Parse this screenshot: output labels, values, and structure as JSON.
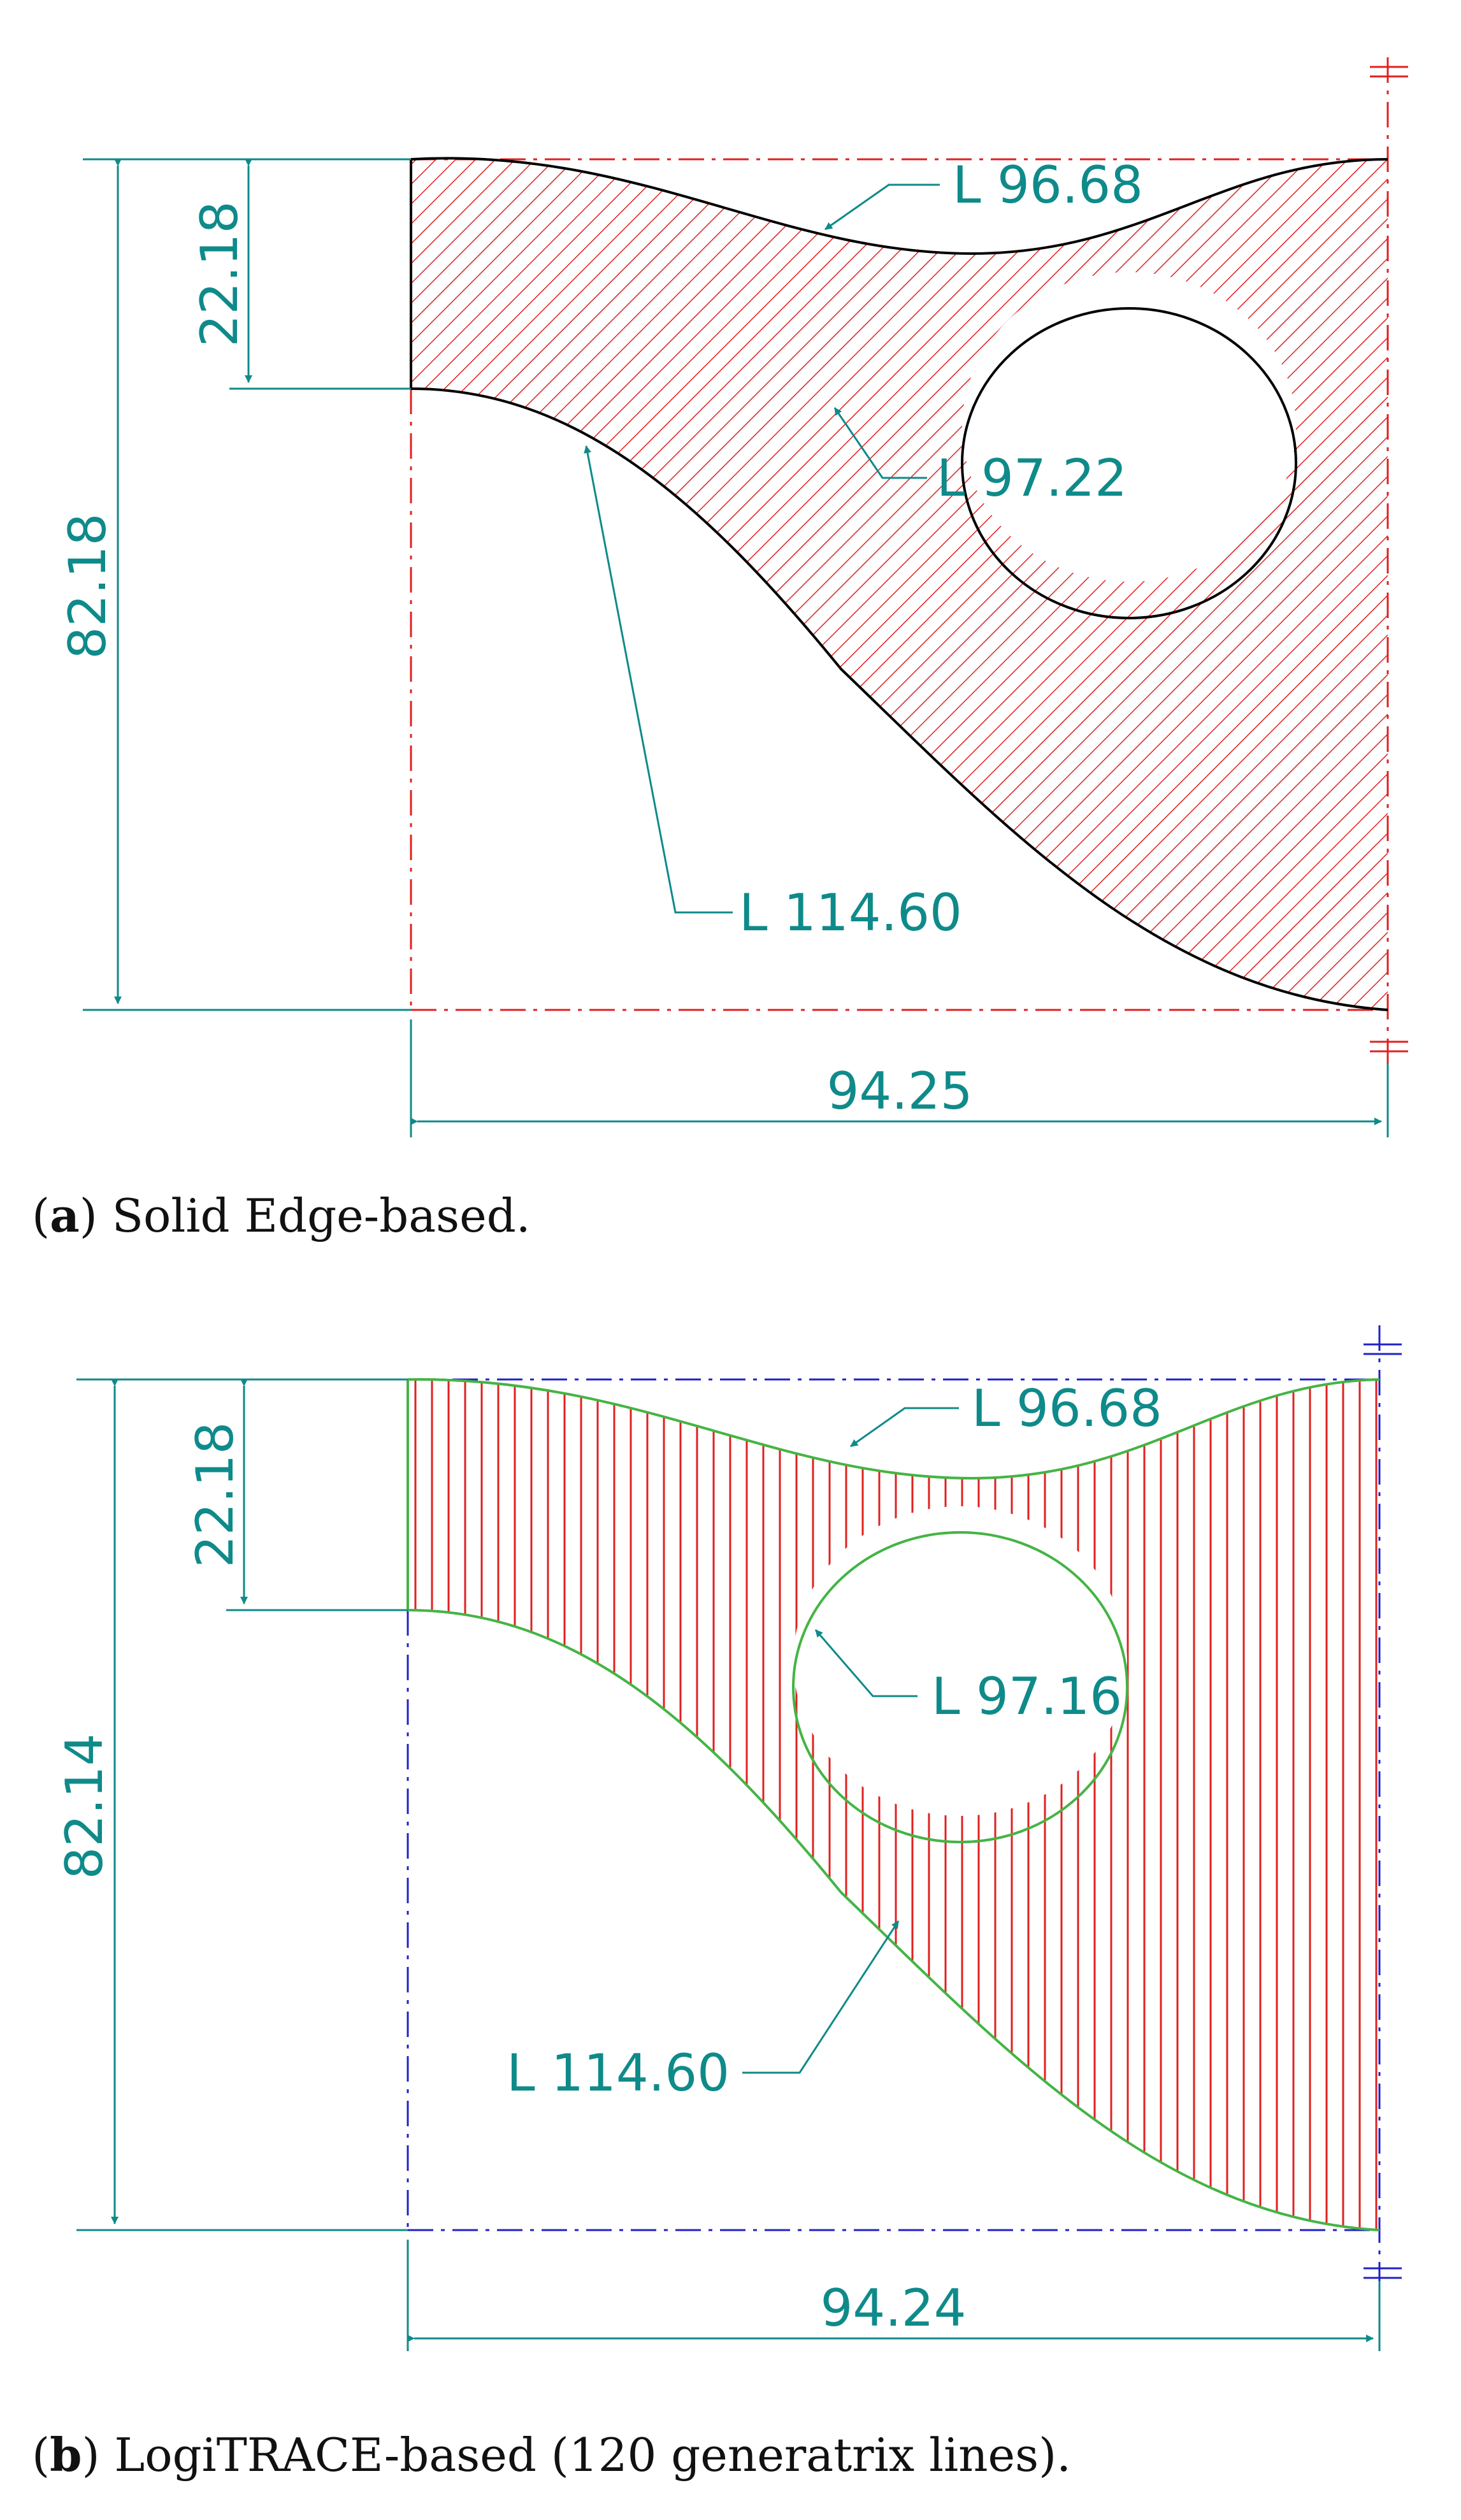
{
  "figure_a": {
    "caption_letter": "a",
    "caption_text": "Solid Edge-based.",
    "dim_total_height": "82.18",
    "dim_step_height": "22.18",
    "dim_width": "94.25",
    "label_top_curve": "L 96.68",
    "label_circle": "L 97.22",
    "label_bottom_curve": "L 114.60",
    "colors": {
      "dimension": "#0f8a8a",
      "hatch": "#e02020",
      "outline": "#000000",
      "frame": "#e02020"
    }
  },
  "figure_b": {
    "caption_letter": "b",
    "caption_text": "LogiTRACE-based (120 generatrix lines).",
    "dim_total_height": "82.14",
    "dim_step_height": "22.18",
    "dim_width": "94.24",
    "label_top_curve": "L 96.68",
    "label_circle": "L 97.16",
    "label_bottom_curve": "L 114.60",
    "colors": {
      "dimension": "#0f8a8a",
      "hatch": "#e02020",
      "outline": "#44b444",
      "frame": "#2020c8"
    }
  }
}
